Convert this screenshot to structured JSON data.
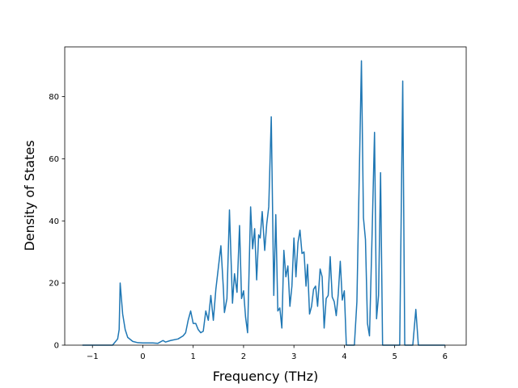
{
  "chart_data": {
    "type": "line",
    "xlabel": "Frequency (THz)",
    "ylabel": "Density of States",
    "x": [
      -1.2,
      -0.6,
      -0.5,
      -0.47,
      -0.45,
      -0.4,
      -0.35,
      -0.3,
      -0.2,
      -0.1,
      0,
      0.2,
      0.3,
      0.4,
      0.45,
      0.55,
      0.7,
      0.8,
      0.85,
      0.9,
      0.95,
      1.0,
      1.05,
      1.1,
      1.15,
      1.2,
      1.25,
      1.3,
      1.35,
      1.4,
      1.45,
      1.55,
      1.6,
      1.62,
      1.67,
      1.72,
      1.78,
      1.82,
      1.87,
      1.92,
      1.96,
      2.0,
      2.04,
      2.08,
      2.14,
      2.18,
      2.22,
      2.26,
      2.3,
      2.33,
      2.37,
      2.42,
      2.46,
      2.5,
      2.55,
      2.6,
      2.64,
      2.68,
      2.72,
      2.76,
      2.8,
      2.84,
      2.88,
      2.92,
      2.96,
      3.0,
      3.04,
      3.08,
      3.12,
      3.16,
      3.2,
      3.24,
      3.27,
      3.31,
      3.35,
      3.39,
      3.43,
      3.47,
      3.52,
      3.56,
      3.6,
      3.64,
      3.68,
      3.72,
      3.76,
      3.8,
      3.84,
      3.88,
      3.92,
      3.96,
      4.0,
      4.04,
      4.2,
      4.25,
      4.34,
      4.38,
      4.42,
      4.46,
      4.5,
      4.55,
      4.6,
      4.64,
      4.68,
      4.72,
      4.76,
      5.1,
      5.16,
      5.2,
      5.36,
      5.42,
      5.47,
      6.0
    ],
    "values": [
      0,
      0,
      2,
      5,
      20,
      10,
      5,
      2.5,
      1.2,
      0.8,
      0.7,
      0.7,
      0.6,
      1.5,
      1.0,
      1.5,
      2,
      3,
      4,
      8,
      11,
      7,
      7,
      5,
      4,
      4.5,
      11,
      8,
      16,
      8,
      18,
      32,
      18,
      10.5,
      15,
      43.5,
      13.5,
      23,
      17,
      38.5,
      15,
      17.5,
      9,
      4,
      44.5,
      31,
      37.5,
      21,
      35.5,
      34.5,
      43,
      30.5,
      39,
      44.5,
      73.5,
      16,
      42,
      11,
      12,
      5.5,
      30.5,
      22,
      25.5,
      12.5,
      19,
      34.5,
      22,
      33,
      37,
      29.5,
      30,
      19,
      26,
      10,
      12.5,
      18,
      19,
      12.5,
      24.5,
      22,
      5.5,
      15,
      16,
      28.5,
      15.5,
      14,
      9.5,
      16.5,
      27,
      14.5,
      17.5,
      0,
      0,
      14,
      91.5,
      41,
      34,
      7,
      3,
      34.5,
      68.5,
      8.5,
      16,
      55.5,
      0,
      0,
      85,
      0,
      0,
      11.5,
      0,
      0
    ],
    "color": "#1f77b4",
    "xlim": [
      -1.55,
      6.42
    ],
    "ylim": [
      0,
      96
    ],
    "xticks": [
      {
        "value": -1,
        "label": "−1"
      },
      0,
      1,
      2,
      3,
      4,
      5,
      6
    ],
    "yticks": [
      0,
      20,
      40,
      60,
      80
    ]
  }
}
